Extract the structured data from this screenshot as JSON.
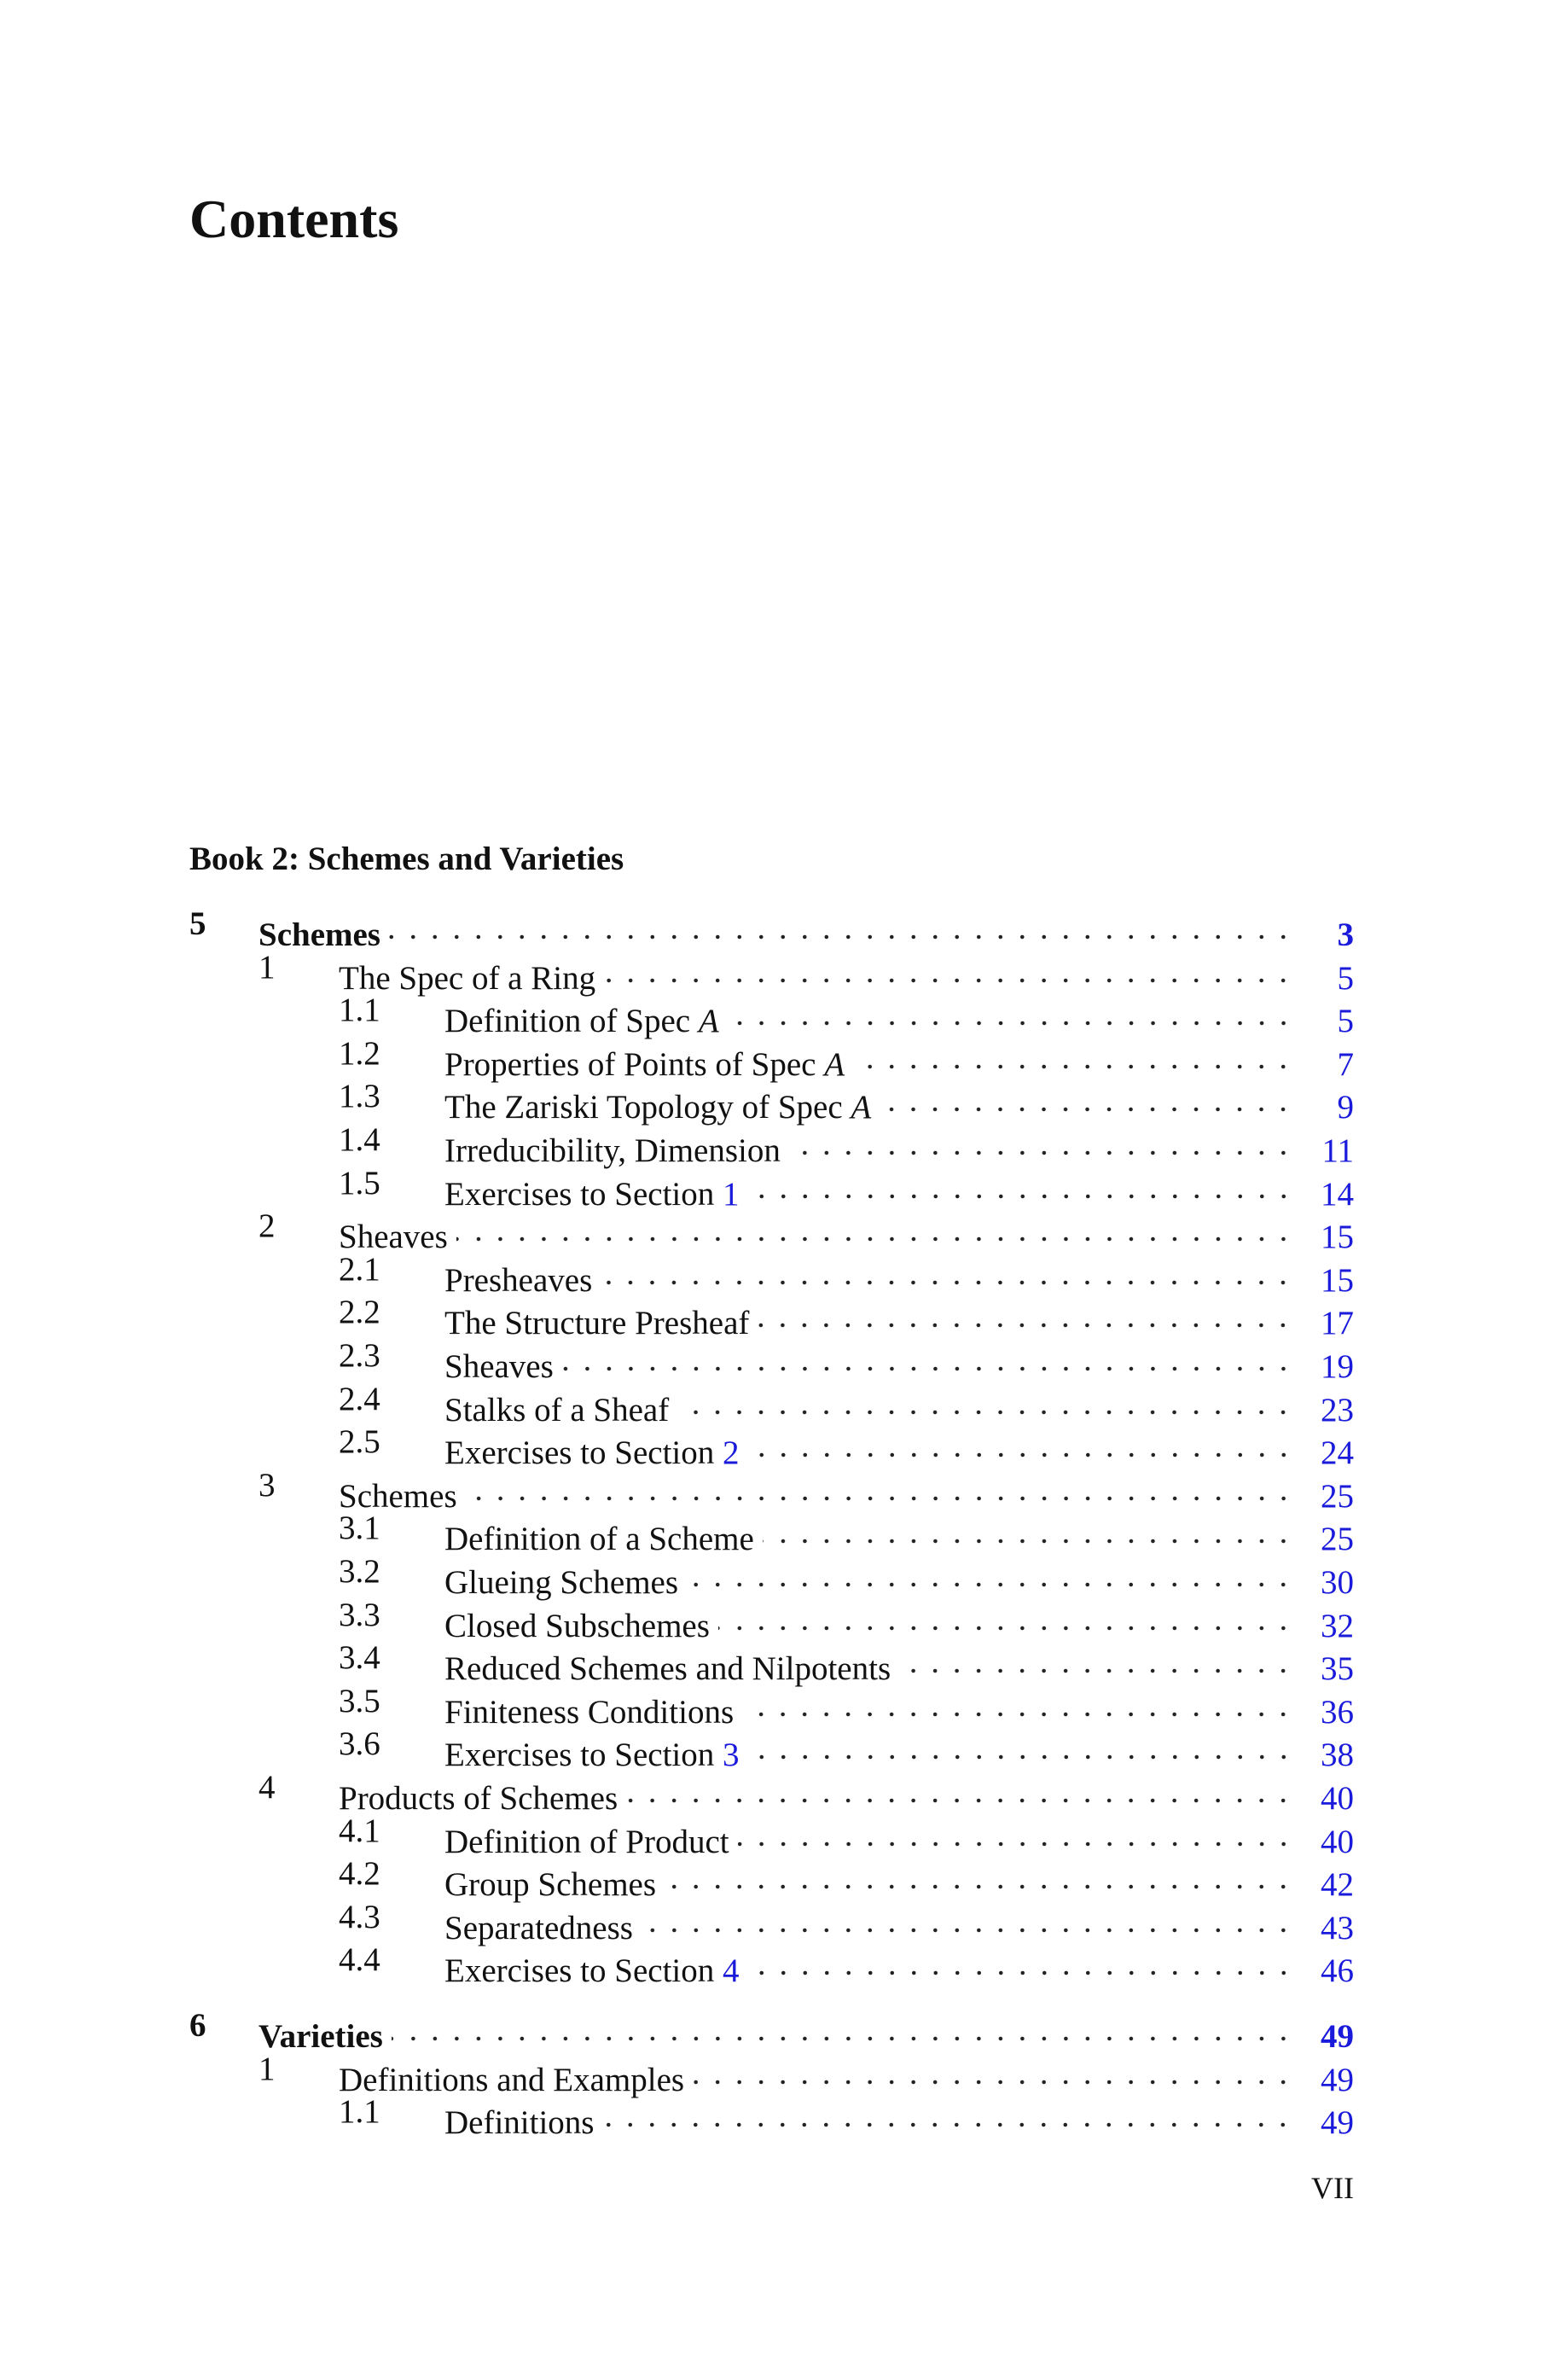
{
  "header": {
    "title": "Contents"
  },
  "book": "Book 2: Schemes and Varieties",
  "entries": [
    {
      "level": 0,
      "number": "5",
      "title": "Schemes",
      "page": 3
    },
    {
      "level": 1,
      "number": "1",
      "title": "The Spec of a Ring",
      "page": 5
    },
    {
      "level": 2,
      "number": "1.1",
      "title": "Definition of Spec",
      "var": "A",
      "page": 5
    },
    {
      "level": 2,
      "number": "1.2",
      "title": "Properties of Points of Spec",
      "var": "A",
      "page": 7
    },
    {
      "level": 2,
      "number": "1.3",
      "title": "The Zariski Topology of Spec",
      "var": "A",
      "page": 9
    },
    {
      "level": 2,
      "number": "1.4",
      "title": "Irreducibility, Dimension",
      "page": 11
    },
    {
      "level": 2,
      "number": "1.5",
      "title": "Exercises to Section",
      "ref": "1",
      "page": 14
    },
    {
      "level": 1,
      "number": "2",
      "title": "Sheaves",
      "page": 15
    },
    {
      "level": 2,
      "number": "2.1",
      "title": "Presheaves",
      "page": 15
    },
    {
      "level": 2,
      "number": "2.2",
      "title": "The Structure Presheaf",
      "page": 17
    },
    {
      "level": 2,
      "number": "2.3",
      "title": "Sheaves",
      "page": 19
    },
    {
      "level": 2,
      "number": "2.4",
      "title": "Stalks of a Sheaf",
      "page": 23
    },
    {
      "level": 2,
      "number": "2.5",
      "title": "Exercises to Section",
      "ref": "2",
      "page": 24
    },
    {
      "level": 1,
      "number": "3",
      "title": "Schemes",
      "page": 25
    },
    {
      "level": 2,
      "number": "3.1",
      "title": "Definition of a Scheme",
      "page": 25
    },
    {
      "level": 2,
      "number": "3.2",
      "title": "Glueing Schemes",
      "page": 30
    },
    {
      "level": 2,
      "number": "3.3",
      "title": "Closed Subschemes",
      "page": 32
    },
    {
      "level": 2,
      "number": "3.4",
      "title": "Reduced Schemes and Nilpotents",
      "page": 35
    },
    {
      "level": 2,
      "number": "3.5",
      "title": "Finiteness Conditions",
      "page": 36
    },
    {
      "level": 2,
      "number": "3.6",
      "title": "Exercises to Section",
      "ref": "3",
      "page": 38
    },
    {
      "level": 1,
      "number": "4",
      "title": "Products of Schemes",
      "page": 40
    },
    {
      "level": 2,
      "number": "4.1",
      "title": "Definition of Product",
      "page": 40
    },
    {
      "level": 2,
      "number": "4.2",
      "title": "Group Schemes",
      "page": 42
    },
    {
      "level": 2,
      "number": "4.3",
      "title": "Separatedness",
      "page": 43
    },
    {
      "level": 2,
      "number": "4.4",
      "title": "Exercises to Section",
      "ref": "4",
      "page": 46
    },
    {
      "level": 0,
      "number": "6",
      "title": "Varieties",
      "page": 49
    },
    {
      "level": 1,
      "number": "1",
      "title": "Definitions and Examples",
      "page": 49
    },
    {
      "level": 2,
      "number": "1.1",
      "title": "Definitions",
      "page": 49
    }
  ],
  "footer": {
    "page": "VII"
  }
}
